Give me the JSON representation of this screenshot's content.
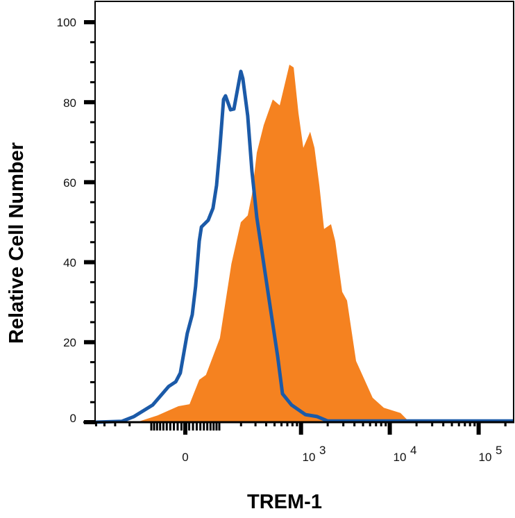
{
  "chart_data": {
    "type": "area",
    "title": "",
    "xlabel": "TREM-1",
    "ylabel": "Relative Cell Number",
    "x_scale": "biexponential",
    "xlim": [
      -510,
      250000
    ],
    "ylim": [
      0,
      100
    ],
    "grid": false,
    "legend": "none",
    "y_ticks": [
      {
        "value": 0,
        "label": "0"
      },
      {
        "value": 20,
        "label": "20"
      },
      {
        "value": 40,
        "label": "40"
      },
      {
        "value": 60,
        "label": "60"
      },
      {
        "value": 80,
        "label": "80"
      },
      {
        "value": 100,
        "label": "100"
      }
    ],
    "x_ticks": [
      {
        "value": 0,
        "base": "0",
        "exp": ""
      },
      {
        "value": 1000,
        "base": "10",
        "exp": "3"
      },
      {
        "value": 10000,
        "base": "10",
        "exp": "4"
      },
      {
        "value": 100000,
        "base": "10",
        "exp": "5"
      }
    ],
    "series": [
      {
        "style": "filled",
        "color": "#f58220",
        "x": [
          -510,
          -162,
          -78,
          -18,
          11,
          37,
          56,
          102,
          150,
          199,
          242,
          272,
          311,
          375,
          477,
          573,
          739,
          825,
          936,
          1062,
          1270,
          1420,
          1610,
          1820,
          2180,
          2430,
          2910,
          3300,
          4170,
          6420,
          8570,
          13200,
          16700,
          250000
        ],
        "y": [
          0,
          0,
          1.7,
          4.0,
          4.5,
          10.6,
          11.8,
          21.0,
          39.6,
          50.0,
          51.7,
          56.9,
          67.4,
          74.3,
          80.7,
          79.2,
          89.4,
          88.7,
          77.3,
          68.6,
          72.6,
          68.6,
          59.2,
          48.3,
          49.5,
          45.3,
          32.6,
          30.4,
          15.3,
          6.1,
          3.6,
          2.3,
          0,
          0
        ]
      },
      {
        "style": "outline",
        "color": "#1b5aa8",
        "x": [
          -510,
          -250,
          -176,
          -95,
          -45,
          -25,
          -13,
          5,
          18,
          27,
          37,
          43,
          63,
          78,
          90,
          102,
          116,
          124,
          146,
          162,
          199,
          211,
          242,
          272,
          311,
          375,
          451,
          542,
          616,
          780,
          1120,
          1520,
          2000,
          250000
        ],
        "y": [
          0,
          0.2,
          1.4,
          4.3,
          8.9,
          10.1,
          12.3,
          22.2,
          26.9,
          33.9,
          45.3,
          48.8,
          50.5,
          53.5,
          59.2,
          68.6,
          80.7,
          81.6,
          78.1,
          78.3,
          87.7,
          85.9,
          76.6,
          62.7,
          51.2,
          39.6,
          28.0,
          16.5,
          7.1,
          4.3,
          1.9,
          1.4,
          0.3,
          0.3
        ]
      }
    ]
  }
}
